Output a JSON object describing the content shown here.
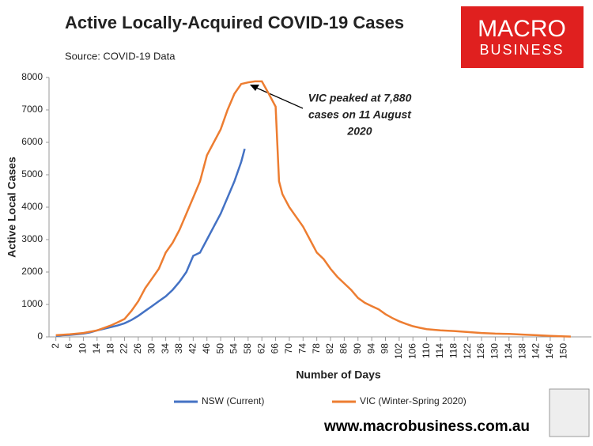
{
  "chart_data": {
    "type": "line",
    "title": "Active Locally-Acquired COVID-19 Cases",
    "subtitle": "Source: COVID-19 Data",
    "y_label": "Active Local Cases",
    "x_label": "Number of Days",
    "annotation": [
      "VIC peaked at 7,880",
      "cases on 11 August",
      "2020"
    ],
    "logo_text": [
      "MACRO",
      "BUSINESS"
    ],
    "footer_text": "www.macrobusiness.com.au",
    "xlim": [
      0,
      158
    ],
    "xticks": [
      2,
      6,
      10,
      14,
      18,
      22,
      26,
      30,
      34,
      38,
      42,
      46,
      50,
      54,
      58,
      62,
      66,
      70,
      74,
      78,
      82,
      86,
      90,
      94,
      98,
      102,
      106,
      110,
      114,
      118,
      122,
      126,
      130,
      134,
      138,
      142,
      146,
      150
    ],
    "ylim": [
      0,
      8000
    ],
    "yticks": [
      0,
      1000,
      2000,
      3000,
      4000,
      5000,
      6000,
      7000,
      8000
    ],
    "grid": false,
    "legend": "bottom",
    "series": [
      {
        "name": "NSW (Current)",
        "color": "#4472c4",
        "x": [
          2,
          4,
          6,
          8,
          10,
          12,
          14,
          16,
          18,
          20,
          22,
          24,
          26,
          28,
          30,
          32,
          34,
          36,
          38,
          40,
          42,
          44,
          46,
          48,
          50,
          52,
          54,
          56,
          57
        ],
        "values": [
          30,
          50,
          60,
          80,
          100,
          140,
          200,
          250,
          300,
          350,
          420,
          520,
          650,
          800,
          950,
          1100,
          1250,
          1450,
          1700,
          2000,
          2500,
          2600,
          3000,
          3400,
          3800,
          4300,
          4800,
          5400,
          5800
        ]
      },
      {
        "name": "VIC (Winter-Spring 2020)",
        "color": "#ed7d31",
        "x": [
          2,
          6,
          10,
          14,
          18,
          20,
          22,
          24,
          26,
          28,
          30,
          32,
          34,
          36,
          38,
          40,
          42,
          44,
          46,
          48,
          50,
          52,
          54,
          56,
          58,
          60,
          62,
          64,
          66,
          67,
          68,
          70,
          72,
          74,
          76,
          78,
          80,
          82,
          84,
          86,
          88,
          90,
          92,
          94,
          96,
          98,
          100,
          102,
          104,
          106,
          108,
          110,
          114,
          118,
          122,
          126,
          130,
          134,
          138,
          142,
          146,
          150,
          152
        ],
        "values": [
          50,
          80,
          120,
          200,
          350,
          450,
          550,
          800,
          1100,
          1500,
          1800,
          2100,
          2600,
          2900,
          3300,
          3800,
          4300,
          4800,
          5600,
          6000,
          6400,
          7000,
          7500,
          7800,
          7850,
          7880,
          7880,
          7500,
          7100,
          4800,
          4400,
          4000,
          3700,
          3400,
          3000,
          2600,
          2400,
          2100,
          1850,
          1650,
          1450,
          1200,
          1050,
          950,
          850,
          700,
          580,
          480,
          400,
          330,
          280,
          240,
          200,
          180,
          150,
          120,
          100,
          90,
          70,
          50,
          30,
          15,
          10
        ]
      }
    ]
  }
}
